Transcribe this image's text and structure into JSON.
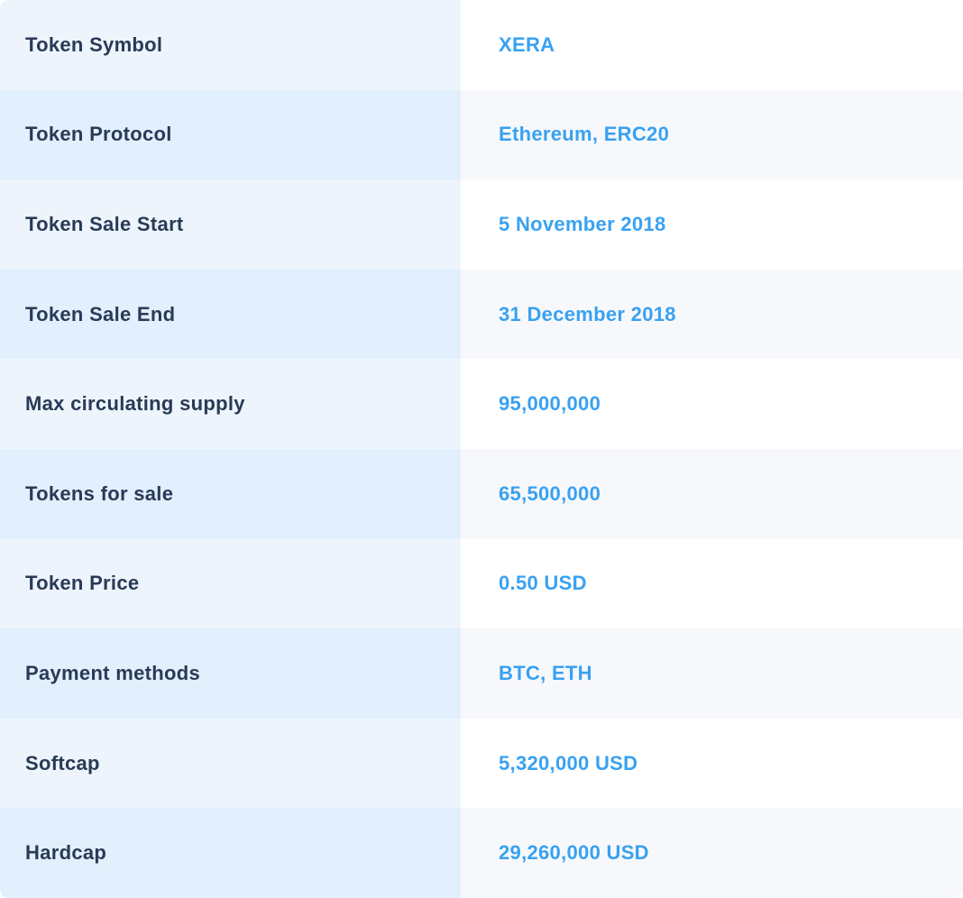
{
  "table": {
    "rows": [
      {
        "label": "Token Symbol",
        "value": "XERA"
      },
      {
        "label": "Token Protocol",
        "value": "Ethereum, ERC20"
      },
      {
        "label": "Token Sale Start",
        "value": "5 November 2018"
      },
      {
        "label": "Token Sale End",
        "value": "31 December 2018"
      },
      {
        "label": "Max circulating supply",
        "value": "95,000,000"
      },
      {
        "label": "Tokens for sale",
        "value": "65,500,000"
      },
      {
        "label": "Token Price",
        "value": "0.50 USD"
      },
      {
        "label": "Payment methods",
        "value": "BTC, ETH"
      },
      {
        "label": "Softcap",
        "value": "5,320,000 USD"
      },
      {
        "label": "Hardcap",
        "value": "29,260,000 USD"
      }
    ]
  },
  "colors": {
    "label_color": "#293A56",
    "value_color": "#38A1F1",
    "row_odd_left": "#EDF4FC",
    "row_even_left": "#E2EFFD",
    "row_odd_right": "#FFFFFF",
    "row_even_right": "#F7F8FC"
  }
}
